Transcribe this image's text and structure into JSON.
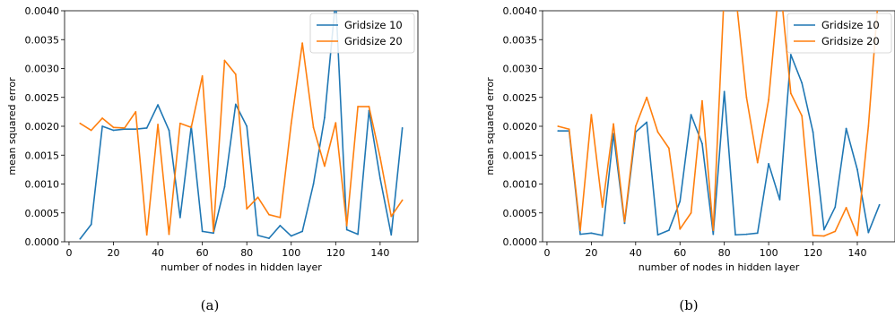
{
  "chart_data": [
    {
      "type": "line",
      "caption": "(a)",
      "xlabel": "number of nodes in hidden layer",
      "ylabel": "mean squared error",
      "xlim": [
        -2,
        157
      ],
      "ylim": [
        0,
        0.004
      ],
      "xticks": [
        0,
        20,
        40,
        60,
        80,
        100,
        120,
        140
      ],
      "yticks": [
        "0.0000",
        "0.0005",
        "0.0010",
        "0.0015",
        "0.0020",
        "0.0025",
        "0.0030",
        "0.0035",
        "0.0040"
      ],
      "legend_position": "top-right",
      "x": [
        5,
        10,
        15,
        20,
        25,
        30,
        35,
        40,
        45,
        50,
        55,
        60,
        65,
        70,
        75,
        80,
        85,
        90,
        95,
        100,
        105,
        110,
        115,
        120,
        125,
        130,
        135,
        140,
        145,
        150
      ],
      "series": [
        {
          "name": "Gridsize 10",
          "color": "#1f77b4",
          "values": [
            5e-05,
            0.0003,
            0.002,
            0.00193,
            0.00195,
            0.00195,
            0.00197,
            0.00237,
            0.00193,
            0.00042,
            0.002,
            0.00018,
            0.00015,
            0.00095,
            0.00238,
            0.002,
            0.00011,
            6e-05,
            0.00028,
            0.0001,
            0.00018,
            0.001,
            0.00215,
            0.0042,
            0.00021,
            0.00013,
            0.00227,
            0.0011,
            0.00012,
            0.00197
          ]
        },
        {
          "name": "Gridsize 20",
          "color": "#ff7f0e",
          "values": [
            0.00205,
            0.00193,
            0.00214,
            0.00198,
            0.00197,
            0.00225,
            0.00012,
            0.00203,
            0.00013,
            0.00205,
            0.00198,
            0.00287,
            0.00018,
            0.00314,
            0.0029,
            0.00057,
            0.00077,
            0.00047,
            0.00042,
            0.00205,
            0.00344,
            0.00198,
            0.00131,
            0.00206,
            0.00028,
            0.00234,
            0.00234,
            0.00146,
            0.00044,
            0.00072
          ]
        }
      ]
    },
    {
      "type": "line",
      "caption": "(b)",
      "xlabel": "number of nodes in hidden layer",
      "ylabel": "mean squared error",
      "xlim": [
        -2,
        157
      ],
      "ylim": [
        0,
        0.004
      ],
      "xticks": [
        0,
        20,
        40,
        60,
        80,
        100,
        120,
        140
      ],
      "yticks": [
        "0.0000",
        "0.0005",
        "0.0010",
        "0.0015",
        "0.0020",
        "0.0025",
        "0.0030",
        "0.0035",
        "0.0040"
      ],
      "legend_position": "top-right",
      "x": [
        5,
        10,
        15,
        20,
        25,
        30,
        35,
        40,
        45,
        50,
        55,
        60,
        65,
        70,
        75,
        80,
        85,
        90,
        95,
        100,
        105,
        110,
        115,
        120,
        125,
        130,
        135,
        140,
        145,
        150
      ],
      "series": [
        {
          "name": "Gridsize 10",
          "color": "#1f77b4",
          "values": [
            0.00192,
            0.00192,
            0.00013,
            0.00015,
            0.00011,
            0.00187,
            0.00032,
            0.0019,
            0.00207,
            0.00012,
            0.0002,
            0.0007,
            0.0022,
            0.0017,
            0.00013,
            0.0026,
            0.00012,
            0.00013,
            0.00015,
            0.00135,
            0.00073,
            0.00324,
            0.00275,
            0.0019,
            0.00021,
            0.0006,
            0.00196,
            0.00125,
            0.00016,
            0.00064
          ]
        },
        {
          "name": "Gridsize 20",
          "color": "#ff7f0e",
          "values": [
            0.002,
            0.00195,
            0.0002,
            0.0022,
            0.0006,
            0.00204,
            0.00035,
            0.002,
            0.0025,
            0.0019,
            0.00162,
            0.00022,
            0.0005,
            0.00244,
            0.0002,
            0.00436,
            0.00433,
            0.0025,
            0.00137,
            0.00246,
            0.00455,
            0.00257,
            0.00218,
            0.00011,
            0.0001,
            0.00018,
            0.00059,
            0.00011,
            0.002,
            0.0045
          ]
        }
      ]
    }
  ]
}
